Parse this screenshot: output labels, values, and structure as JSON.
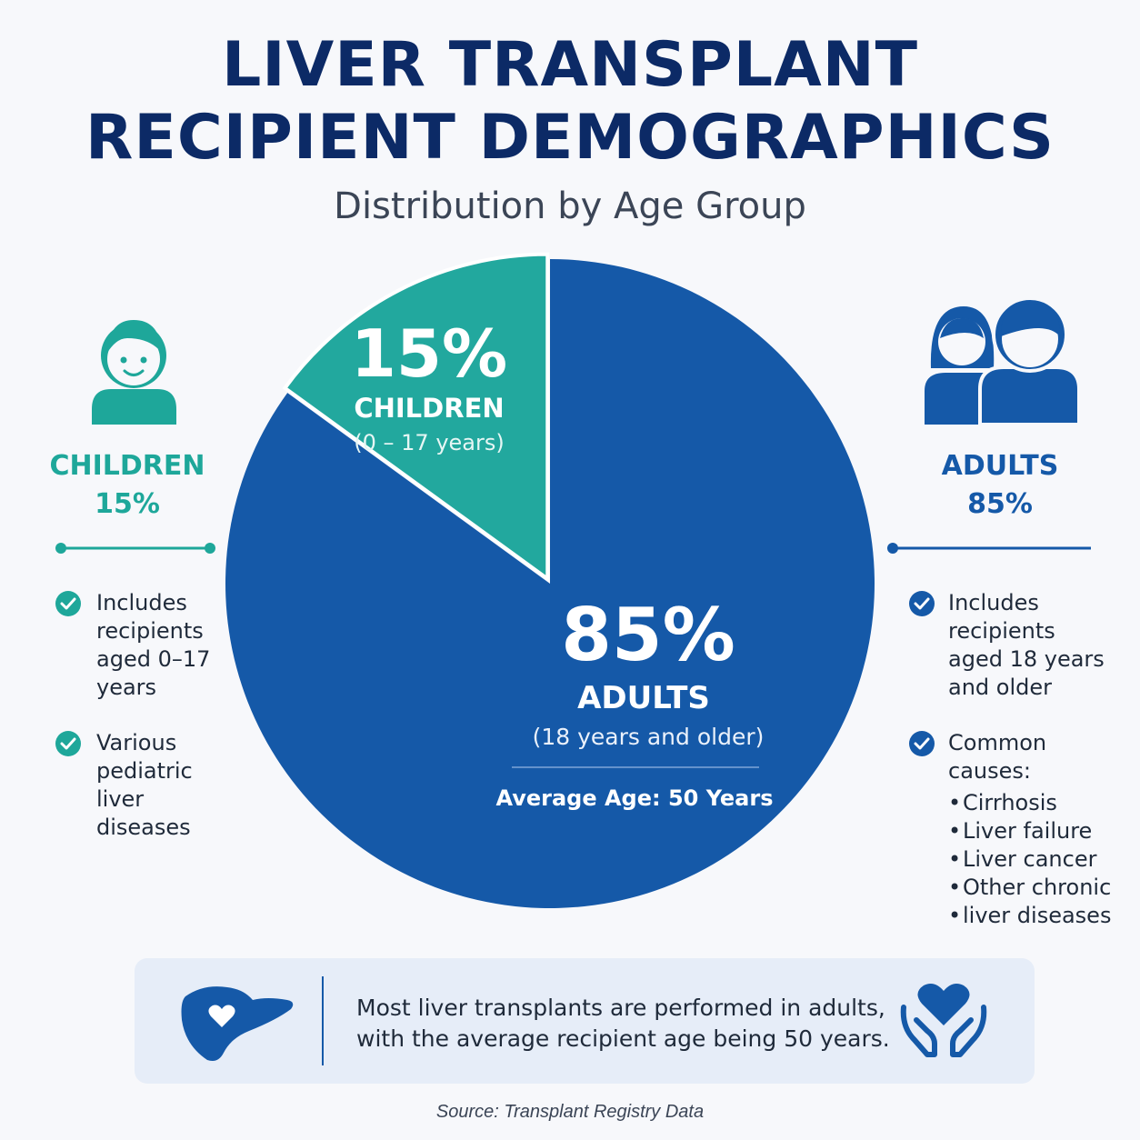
{
  "header": {
    "title_line1": "LIVER TRANSPLANT",
    "title_line2": "RECIPIENT DEMOGRAPHICS",
    "subtitle": "Distribution by Age Group"
  },
  "chart_data": {
    "type": "pie",
    "title": "LIVER TRANSPLANT RECIPIENT DEMOGRAPHICS",
    "subtitle": "Distribution by Age Group",
    "slices": [
      {
        "label": "CHILDREN",
        "value": 15,
        "value_label": "15%",
        "range": "(0 – 17 years)",
        "color": "#22a89e"
      },
      {
        "label": "ADULTS",
        "value": 85,
        "value_label": "85%",
        "range": "(18 years and older)",
        "color": "#1559a8"
      }
    ],
    "annotation": "Average Age: 50 Years"
  },
  "left": {
    "heading": "CHILDREN",
    "percent": "15%",
    "bullet1": [
      "Includes",
      "recipients",
      "aged 0–17",
      "years"
    ],
    "bullet2": [
      "Various",
      "pediatric liver",
      "diseases"
    ],
    "icon": "child-icon",
    "color": "#1ea79a"
  },
  "right": {
    "heading": "ADULTS",
    "percent": "85%",
    "bullet1": [
      "Includes",
      "recipients",
      "aged 18 years",
      "and older"
    ],
    "bullet2_title": "Common causes:",
    "causes": [
      "Cirrhosis",
      "Liver failure",
      "Liver cancer",
      "Other chronic",
      "liver diseases"
    ],
    "icon": "adults-icon",
    "color": "#1559a8"
  },
  "banner": {
    "line1": "Most liver transplants are performed in adults,",
    "line2": "with the average recipient age being 50 years.",
    "left_icon": "liver-heart-icon",
    "right_icon": "heart-in-hands-icon"
  },
  "source": "Source: Transplant Registry Data"
}
